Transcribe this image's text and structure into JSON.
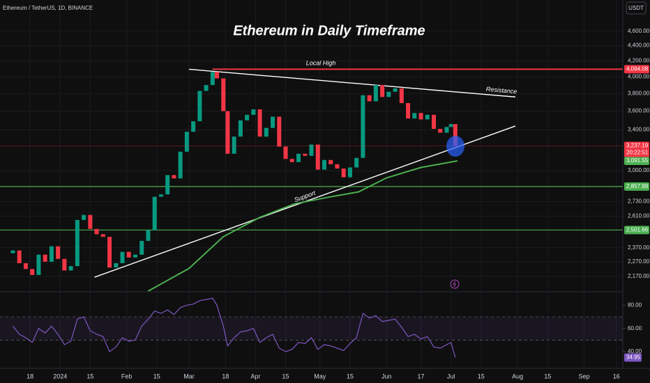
{
  "chart_data": {
    "type": "candlestick",
    "title": "Ethereum in Daily Timeframe",
    "symbol": "Ethereum / TetherUS, 1D, BINANCE",
    "currency": "USDT",
    "log_scale": true,
    "xlim": [
      "2023-12-04",
      "2024-09-19"
    ],
    "ylim": [
      2075,
      5060
    ],
    "yticks": [
      {
        "value": 2170,
        "label": "2,170.00"
      },
      {
        "value": 2270,
        "label": "2,270.00"
      },
      {
        "value": 2370,
        "label": "2,370.00"
      },
      {
        "value": 2610,
        "label": "2,610.00"
      },
      {
        "value": 2730,
        "label": "2,730.00"
      },
      {
        "value": 3000,
        "label": "3,000.00"
      },
      {
        "value": 3400,
        "label": "3,400.00"
      },
      {
        "value": 3600,
        "label": "3,600.00"
      },
      {
        "value": 3800,
        "label": "3,800.00"
      },
      {
        "value": 4000,
        "label": "4,000.00"
      },
      {
        "value": 4200,
        "label": "4,200.00"
      },
      {
        "value": 4400,
        "label": "4,400.00"
      },
      {
        "value": 4600,
        "label": "4,600.00"
      }
    ],
    "xticks": [
      {
        "value": "2023-12-18",
        "label": "18"
      },
      {
        "value": "2024-01-01",
        "label": "2024"
      },
      {
        "value": "2024-01-15",
        "label": "15"
      },
      {
        "value": "2024-02-01",
        "label": "Feb"
      },
      {
        "value": "2024-02-15",
        "label": "15"
      },
      {
        "value": "2024-03-01",
        "label": "Mar"
      },
      {
        "value": "2024-03-18",
        "label": "18"
      },
      {
        "value": "2024-04-01",
        "label": "Apr"
      },
      {
        "value": "2024-04-15",
        "label": "15"
      },
      {
        "value": "2024-05-01",
        "label": "May"
      },
      {
        "value": "2024-05-15",
        "label": "15"
      },
      {
        "value": "2024-06-01",
        "label": "Jun"
      },
      {
        "value": "2024-06-17",
        "label": "17"
      },
      {
        "value": "2024-07-01",
        "label": "Jul"
      },
      {
        "value": "2024-07-15",
        "label": "15"
      },
      {
        "value": "2024-08-01",
        "label": "Aug"
      },
      {
        "value": "2024-08-15",
        "label": "15"
      },
      {
        "value": "2024-09-01",
        "label": "Sep"
      },
      {
        "value": "2024-09-16",
        "label": "16"
      }
    ],
    "up_color": "#089981",
    "down_color": "#f23645",
    "first_open": 2330,
    "x": [
      "2023-12-10",
      "2023-12-13",
      "2023-12-16",
      "2023-12-19",
      "2023-12-22",
      "2023-12-25",
      "2023-12-28",
      "2023-12-31",
      "2024-01-03",
      "2024-01-06",
      "2024-01-09",
      "2024-01-12",
      "2024-01-15",
      "2024-01-18",
      "2024-01-21",
      "2024-01-24",
      "2024-01-27",
      "2024-01-30",
      "2024-02-02",
      "2024-02-05",
      "2024-02-08",
      "2024-02-11",
      "2024-02-14",
      "2024-02-17",
      "2024-02-20",
      "2024-02-23",
      "2024-02-26",
      "2024-02-29",
      "2024-03-03",
      "2024-03-06",
      "2024-03-09",
      "2024-03-12",
      "2024-03-14",
      "2024-03-17",
      "2024-03-19",
      "2024-03-22",
      "2024-03-25",
      "2024-03-28",
      "2024-03-31",
      "2024-04-03",
      "2024-04-06",
      "2024-04-09",
      "2024-04-12",
      "2024-04-15",
      "2024-04-18",
      "2024-04-21",
      "2024-04-24",
      "2024-04-27",
      "2024-04-30",
      "2024-05-03",
      "2024-05-06",
      "2024-05-09",
      "2024-05-12",
      "2024-05-15",
      "2024-05-18",
      "2024-05-21",
      "2024-05-24",
      "2024-05-27",
      "2024-05-30",
      "2024-06-02",
      "2024-06-05",
      "2024-06-08",
      "2024-06-11",
      "2024-06-14",
      "2024-06-17",
      "2024-06-20",
      "2024-06-23",
      "2024-06-26",
      "2024-06-29",
      "2024-07-01",
      "2024-07-03"
    ],
    "closes": [
      2350,
      2260,
      2220,
      2180,
      2320,
      2270,
      2380,
      2290,
      2210,
      2240,
      2580,
      2620,
      2510,
      2470,
      2450,
      2230,
      2260,
      2340,
      2300,
      2320,
      2420,
      2500,
      2770,
      2790,
      2960,
      2930,
      3180,
      3380,
      3490,
      3830,
      3900,
      4060,
      3980,
      3600,
      3160,
      3330,
      3500,
      3560,
      3620,
      3330,
      3420,
      3540,
      3230,
      3110,
      3080,
      3160,
      3140,
      3250,
      3010,
      3100,
      3060,
      3020,
      2940,
      3030,
      3120,
      3780,
      3710,
      3900,
      3760,
      3820,
      3860,
      3690,
      3520,
      3580,
      3510,
      3560,
      3410,
      3370,
      3430,
      3460,
      3237.19
    ],
    "close_label": "3,237.19",
    "countdown": "20:22:51",
    "ma": {
      "color": "#4caf50",
      "x": [
        "2024-02-11",
        "2024-03-01",
        "2024-03-17",
        "2024-04-03",
        "2024-04-19",
        "2024-05-05",
        "2024-05-19",
        "2024-06-01",
        "2024-06-17",
        "2024-07-04"
      ],
      "values": [
        2075,
        2224,
        2451,
        2601,
        2710,
        2766,
        2812,
        2935,
        3030,
        3091.55
      ],
      "last_label": "3,091.55"
    },
    "levels": [
      {
        "value": 4094.08,
        "label": "4,094.08",
        "color": "#f23645",
        "from": "2024-03-12"
      },
      {
        "value": 2857.99,
        "label": "2,857.99",
        "color": "#4caf50"
      },
      {
        "value": 2501.66,
        "label": "2,501.66",
        "color": "#4caf50"
      }
    ],
    "trendlines": [
      {
        "name": "Support",
        "points": [
          [
            "2024-01-17",
            2165
          ],
          [
            "2024-07-31",
            3440
          ]
        ]
      },
      {
        "name": "Resistance",
        "points": [
          [
            "2024-03-01",
            4093
          ],
          [
            "2024-07-31",
            3760
          ]
        ]
      }
    ],
    "level_note": "Local High",
    "rsi": {
      "color": "#7e57c2",
      "ylim": [
        31,
        91
      ],
      "yticks": [
        {
          "value": 40,
          "label": "40.00"
        },
        {
          "value": 60,
          "label": "60.00"
        },
        {
          "value": 80,
          "label": "80.00"
        }
      ],
      "bands": [
        50,
        70
      ],
      "values": [
        62,
        55,
        52,
        48,
        60,
        56,
        62,
        55,
        46,
        49,
        68,
        70,
        58,
        55,
        53,
        40,
        44,
        52,
        49,
        50,
        62,
        68,
        75,
        73,
        76,
        72,
        78,
        80,
        81,
        84,
        85,
        86,
        80,
        62,
        45,
        52,
        57,
        58,
        60,
        48,
        52,
        55,
        43,
        40,
        42,
        48,
        47,
        52,
        42,
        46,
        45,
        43,
        41,
        47,
        52,
        73,
        69,
        71,
        66,
        67,
        68,
        61,
        53,
        55,
        51,
        53,
        44,
        43,
        46,
        48,
        34.95
      ]
    }
  }
}
